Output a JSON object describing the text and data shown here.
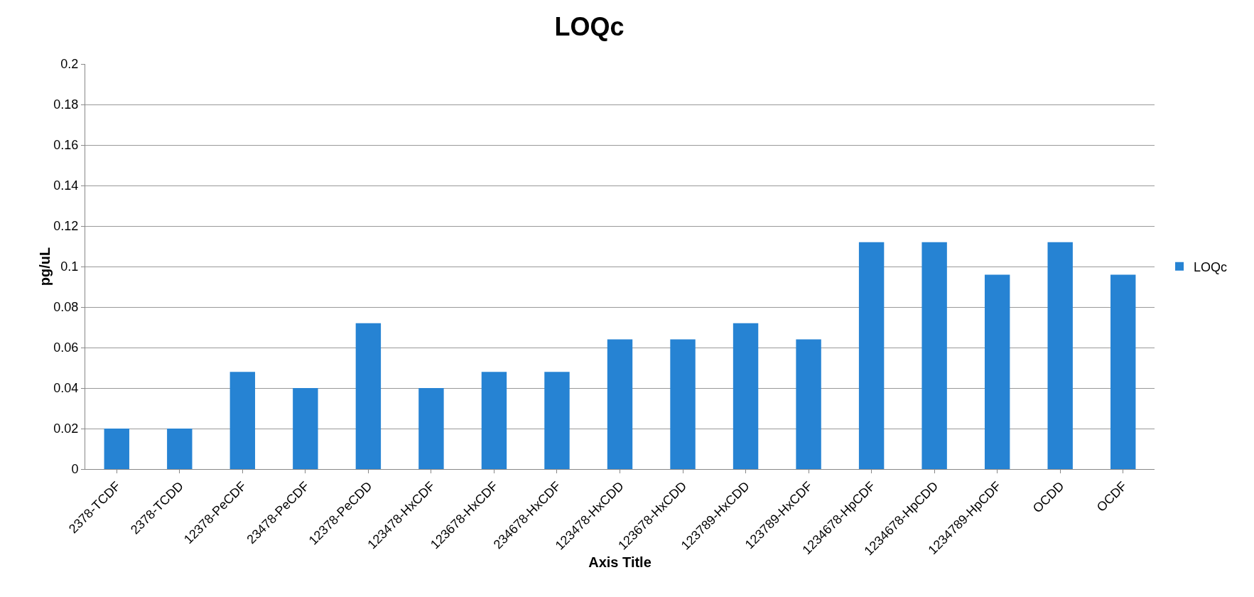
{
  "chart_data": {
    "type": "bar",
    "title": "LOQc",
    "xlabel": "Axis Title",
    "ylabel": "pg/uL",
    "categories": [
      "2378-TCDF",
      "2378-TCDD",
      "12378-PeCDF",
      "23478-PeCDF",
      "12378-PeCDD",
      "123478-HxCDF",
      "123678-HxCDF",
      "234678-HxCDF",
      "123478-HxCDD",
      "123678-HxCDD",
      "123789-HxCDD",
      "123789-HxCDF",
      "1234678-HpCDF",
      "1234678-HpCDD",
      "1234789-HpCDF",
      "OCDD",
      "OCDF"
    ],
    "series": [
      {
        "name": "LOQc",
        "color": "#2683d3",
        "values": [
          0.02,
          0.02,
          0.048,
          0.04,
          0.072,
          0.04,
          0.048,
          0.048,
          0.064,
          0.064,
          0.072,
          0.064,
          0.112,
          0.112,
          0.096,
          0.112,
          0.096
        ]
      }
    ],
    "ylim": [
      0,
      0.2
    ],
    "yticks": [
      0,
      0.02,
      0.04,
      0.06,
      0.08,
      0.1,
      0.12,
      0.14,
      0.16,
      0.18,
      0.2
    ],
    "grid": "y",
    "legend": "right"
  }
}
